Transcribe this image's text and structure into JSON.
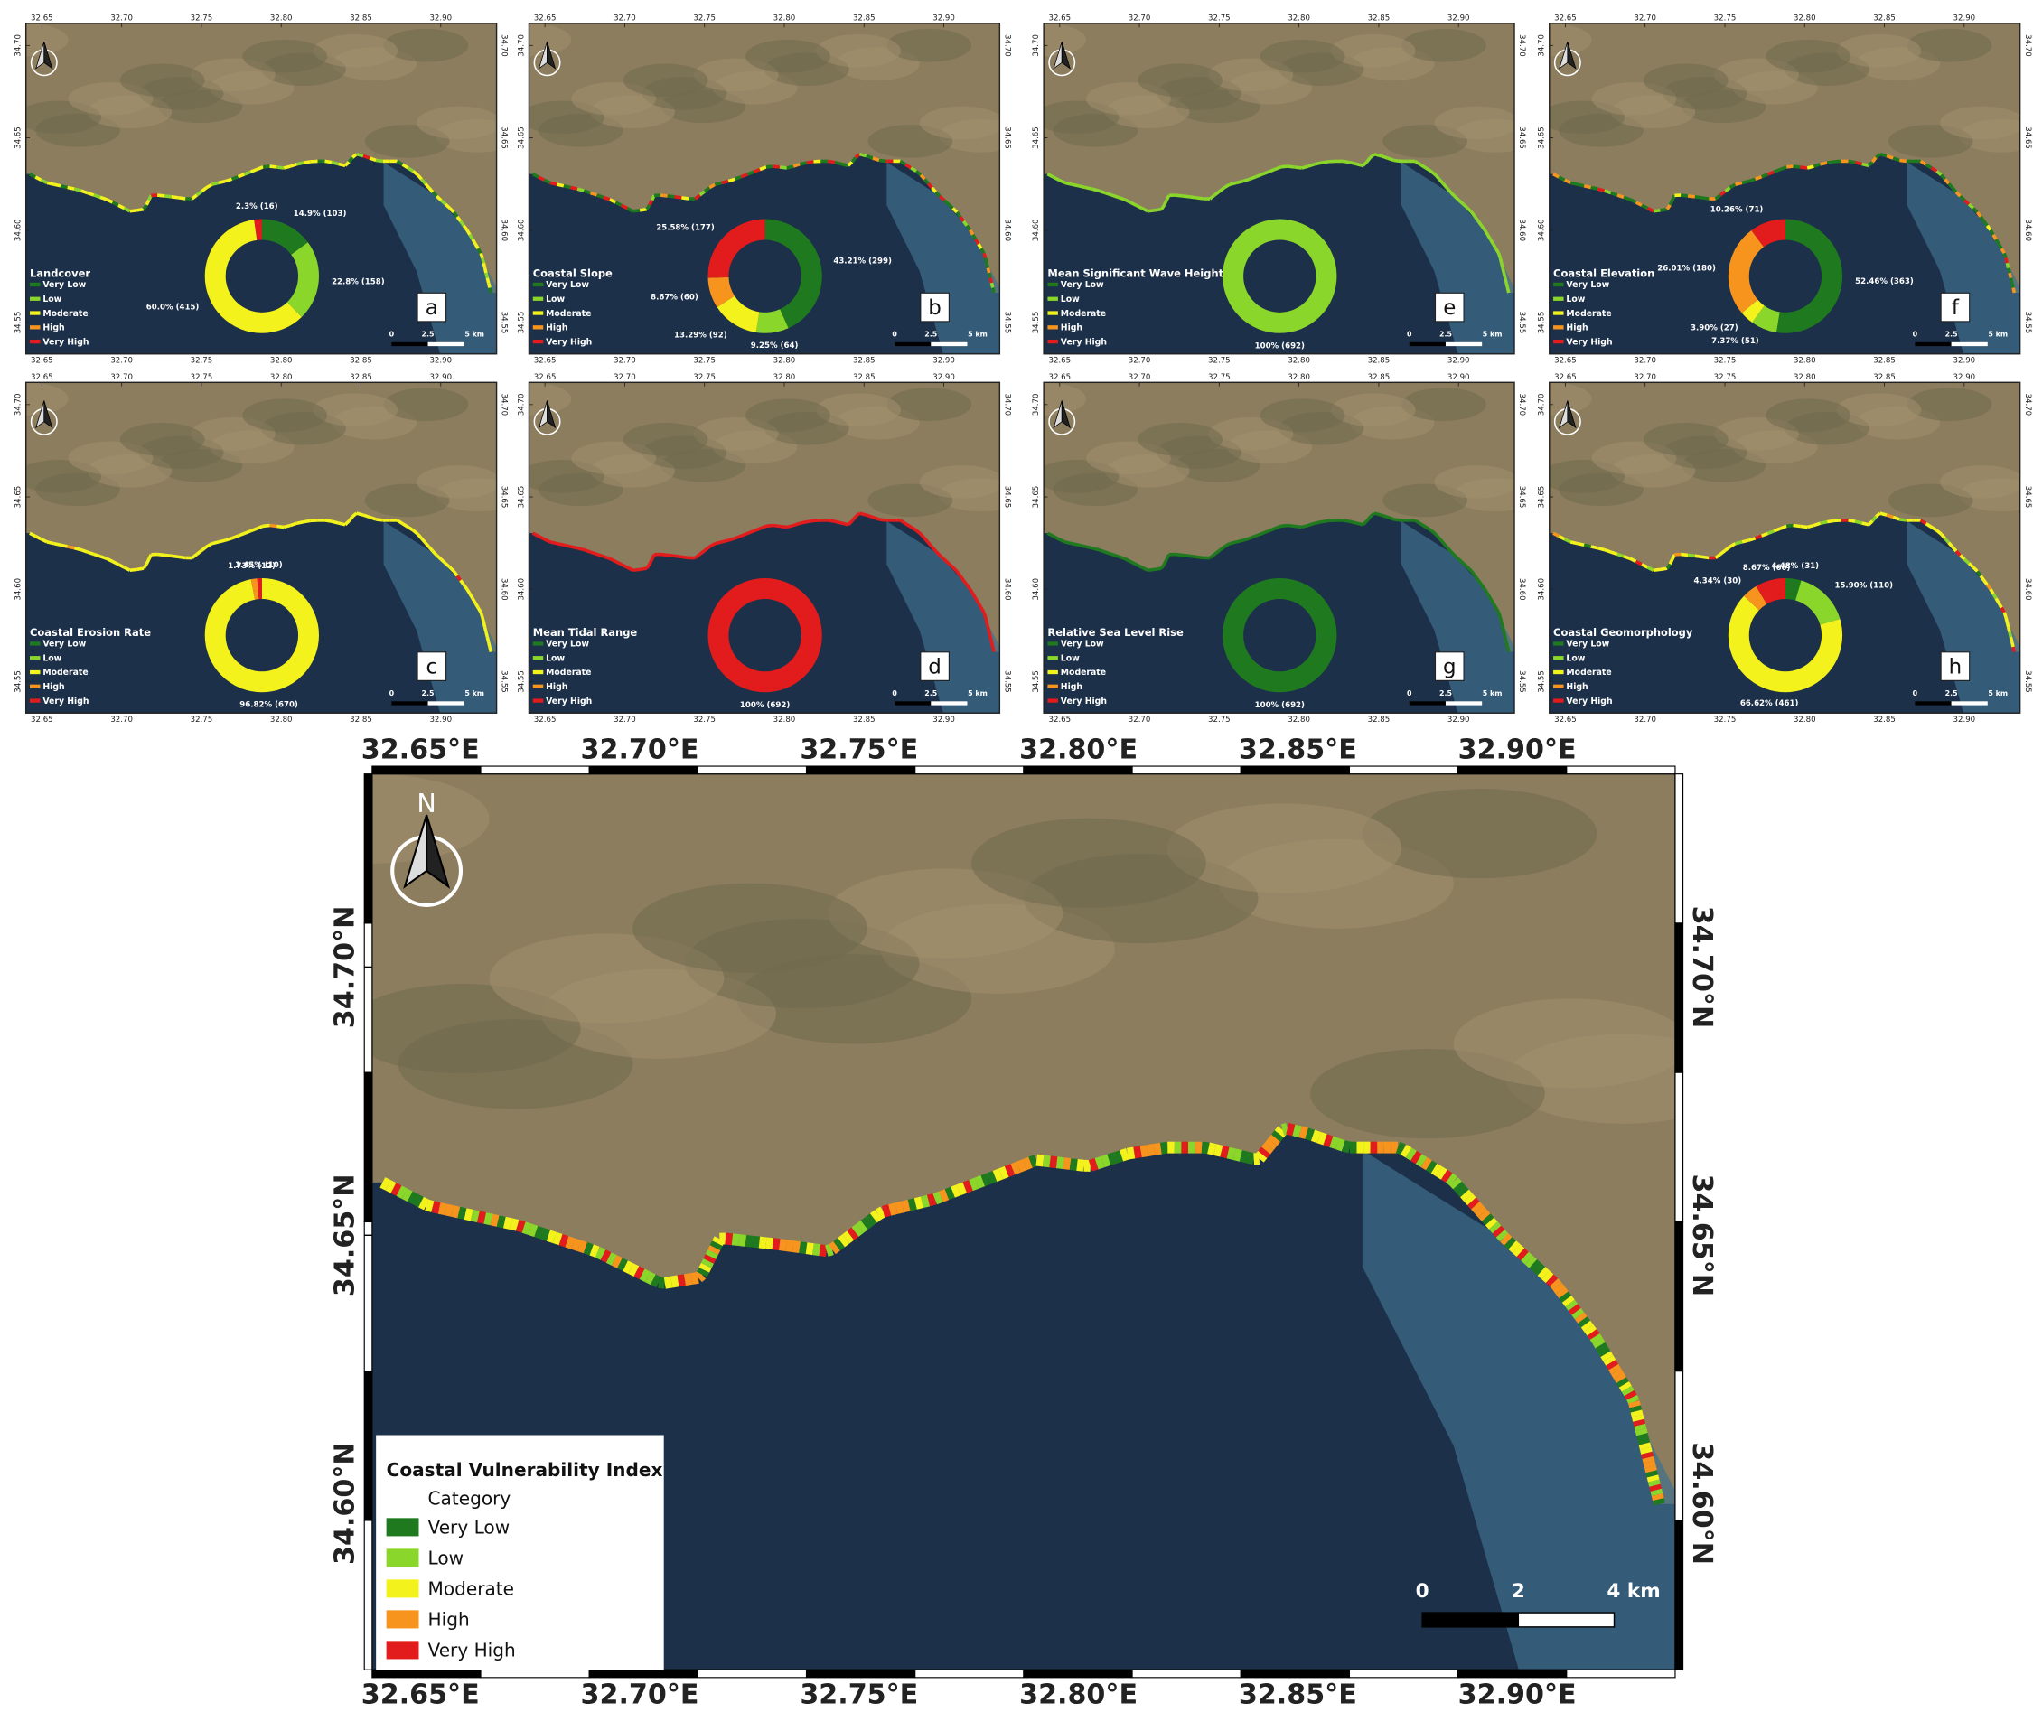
{
  "categories": {
    "names": [
      "Very Low",
      "Low",
      "Moderate",
      "High",
      "Very High"
    ],
    "colors": [
      "#1f7a1f",
      "#8bd62a",
      "#f4f21c",
      "#f7941d",
      "#e21c1c"
    ]
  },
  "panels": [
    {
      "letter": "a",
      "title": "Landcover",
      "values": [
        14.9,
        22.8,
        60.0,
        null,
        2.3
      ],
      "value_labels": [
        "14.9% (103)",
        "22.8% (158)",
        "60.0% (415)",
        null,
        "2.3% (16)"
      ]
    },
    {
      "letter": "b",
      "title": "Coastal Slope",
      "values": [
        43.21,
        9.25,
        13.29,
        8.67,
        25.58
      ],
      "value_labels": [
        "43.21% (299)",
        "9.25% (64)",
        "13.29% (92)",
        "8.67% (60)",
        "25.58% (177)"
      ]
    },
    {
      "letter": "c",
      "title": "Coastal Erosion Rate",
      "values": [
        null,
        null,
        96.82,
        1.73,
        1.45
      ],
      "value_labels": [
        null,
        null,
        "96.82% (670)",
        "1.73% (12)",
        "1.45% (10)"
      ]
    },
    {
      "letter": "d",
      "title": "Mean Tidal Range",
      "values": [
        null,
        null,
        null,
        null,
        100
      ],
      "value_labels": [
        null,
        null,
        null,
        null,
        "100% (692)"
      ]
    },
    {
      "letter": "e",
      "title": "Mean Significant Wave Height",
      "values": [
        null,
        100,
        null,
        null,
        null
      ],
      "value_labels": [
        null,
        "100% (692)",
        null,
        null,
        null
      ]
    },
    {
      "letter": "f",
      "title": "Coastal Elevation",
      "values": [
        52.46,
        7.37,
        3.9,
        26.01,
        10.26
      ],
      "value_labels": [
        "52.46% (363)",
        "7.37% (51)",
        "3.90% (27)",
        "26.01% (180)",
        "10.26% (71)"
      ]
    },
    {
      "letter": "g",
      "title": "Relative Sea Level Rise",
      "values": [
        100,
        null,
        null,
        null,
        null
      ],
      "value_labels": [
        "100% (692)",
        null,
        null,
        null,
        null
      ]
    },
    {
      "letter": "h",
      "title": "Coastal Geomorphology",
      "values": [
        4.48,
        15.9,
        66.62,
        4.34,
        8.67
      ],
      "value_labels": [
        "4.48% (31)",
        "15.90% (110)",
        "66.62% (461)",
        "4.34% (30)",
        "8.67% (60)"
      ]
    }
  ],
  "inset_axes": {
    "xlim": [
      32.64,
      32.935
    ],
    "ylim": [
      34.533,
      34.712
    ],
    "xticks": [
      {
        "value": 32.65,
        "label": "32.65"
      },
      {
        "value": 32.7,
        "label": "32.70"
      },
      {
        "value": 32.75,
        "label": "32.75"
      },
      {
        "value": 32.8,
        "label": "32.80"
      },
      {
        "value": 32.85,
        "label": "32.85"
      },
      {
        "value": 32.9,
        "label": "32.90"
      }
    ],
    "yticks": [
      {
        "value": 34.55,
        "label": "34.55"
      },
      {
        "value": 34.6,
        "label": "34.60"
      },
      {
        "value": 34.65,
        "label": "34.65"
      },
      {
        "value": 34.7,
        "label": "34.70"
      }
    ],
    "scale_labels": [
      "0",
      "2.5",
      "5 km"
    ]
  },
  "main_map": {
    "xlim": [
      32.639,
      32.936
    ],
    "ylim": [
      34.569,
      34.736
    ],
    "xticks": [
      {
        "value": 32.65,
        "label": "32.65°E"
      },
      {
        "value": 32.7,
        "label": "32.70°E"
      },
      {
        "value": 32.75,
        "label": "32.75°E"
      },
      {
        "value": 32.8,
        "label": "32.80°E"
      },
      {
        "value": 32.85,
        "label": "32.85°E"
      },
      {
        "value": 32.9,
        "label": "32.90°E"
      }
    ],
    "yticks": [
      {
        "value": 34.6,
        "label": "34.60°N"
      },
      {
        "value": 34.65,
        "label": "34.65°N"
      },
      {
        "value": 34.7,
        "label": "34.70°N"
      }
    ],
    "legend_title": "Coastal Vulnerability Index",
    "legend_subtitle": "Category",
    "scale_labels": [
      "0",
      "2",
      "4 km"
    ],
    "north": "N"
  }
}
